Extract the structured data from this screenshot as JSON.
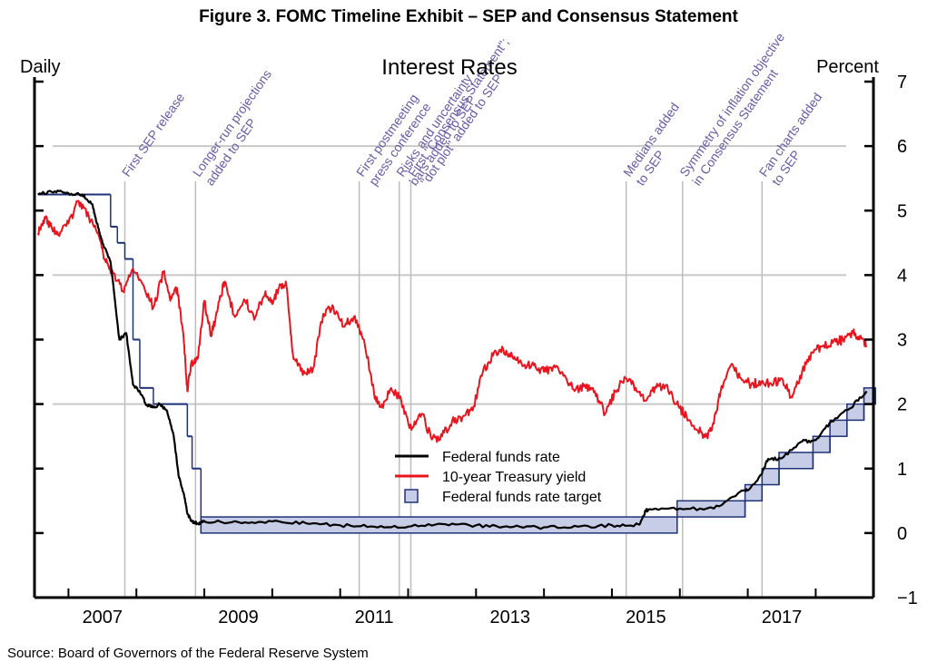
{
  "figure_title": "Figure 3. FOMC Timeline Exhibit – SEP and Consensus Statement",
  "source": "Source: Board of Governors of the Federal Reserve System",
  "chart_data": {
    "type": "line",
    "title": "Interest Rates",
    "left_label": "Daily",
    "right_label": "Percent",
    "xlim": [
      2006.5,
      2018.85
    ],
    "ylim": [
      -1,
      7
    ],
    "x_ticks": [
      {
        "value": 2007,
        "label": "2007"
      },
      {
        "value": 2009,
        "label": "2009"
      },
      {
        "value": 2011,
        "label": "2011"
      },
      {
        "value": 2013,
        "label": "2013"
      },
      {
        "value": 2015,
        "label": "2015"
      },
      {
        "value": 2017,
        "label": "2017"
      }
    ],
    "y_ticks": [
      {
        "value": 7,
        "label": "7"
      },
      {
        "value": 6,
        "label": "6"
      },
      {
        "value": 5,
        "label": "5"
      },
      {
        "value": 4,
        "label": "4"
      },
      {
        "value": 3,
        "label": "3"
      },
      {
        "value": 2,
        "label": "2"
      },
      {
        "value": 1,
        "label": "1"
      },
      {
        "value": 0,
        "label": "0"
      },
      {
        "value": -1,
        "label": "−1"
      }
    ],
    "gridlines_y": [
      6,
      4,
      2
    ],
    "series": [
      {
        "name": "10-year Treasury yield",
        "color": "#e8141e",
        "x": [
          2006.55,
          2006.65,
          2006.75,
          2006.85,
          2007.0,
          2007.15,
          2007.3,
          2007.45,
          2007.55,
          2007.65,
          2007.8,
          2007.95,
          2008.1,
          2008.25,
          2008.4,
          2008.5,
          2008.6,
          2008.7,
          2008.75,
          2008.8,
          2008.9,
          2009.0,
          2009.1,
          2009.2,
          2009.3,
          2009.45,
          2009.6,
          2009.75,
          2009.9,
          2010.0,
          2010.1,
          2010.2,
          2010.3,
          2010.45,
          2010.6,
          2010.75,
          2010.9,
          2011.05,
          2011.2,
          2011.35,
          2011.5,
          2011.6,
          2011.75,
          2011.9,
          2012.05,
          2012.2,
          2012.35,
          2012.5,
          2012.65,
          2012.8,
          2012.95,
          2013.1,
          2013.25,
          2013.4,
          2013.55,
          2013.7,
          2013.85,
          2014.0,
          2014.15,
          2014.3,
          2014.45,
          2014.6,
          2014.75,
          2014.9,
          2015.05,
          2015.2,
          2015.35,
          2015.5,
          2015.65,
          2015.8,
          2015.95,
          2016.1,
          2016.25,
          2016.4,
          2016.5,
          2016.6,
          2016.75,
          2016.9,
          2017.05,
          2017.2,
          2017.35,
          2017.5,
          2017.65,
          2017.8,
          2017.95,
          2018.1,
          2018.25,
          2018.4,
          2018.55,
          2018.65,
          2018.75
        ],
        "y": [
          4.65,
          4.9,
          4.75,
          4.62,
          4.8,
          5.15,
          4.9,
          4.6,
          4.2,
          4.05,
          3.75,
          4.1,
          3.85,
          3.5,
          4.05,
          3.6,
          3.8,
          2.95,
          2.2,
          2.6,
          2.7,
          3.6,
          3.05,
          3.5,
          3.9,
          3.35,
          3.6,
          3.35,
          3.75,
          3.55,
          3.8,
          3.9,
          2.8,
          2.45,
          2.55,
          3.4,
          3.5,
          3.2,
          3.35,
          3.0,
          2.15,
          1.95,
          2.25,
          2.05,
          1.6,
          1.85,
          1.45,
          1.5,
          1.75,
          1.8,
          1.9,
          2.5,
          2.75,
          2.85,
          2.7,
          2.6,
          2.6,
          2.5,
          2.6,
          2.45,
          2.2,
          2.3,
          2.2,
          1.85,
          2.2,
          2.4,
          2.25,
          2.05,
          2.25,
          2.3,
          2.0,
          1.8,
          1.6,
          1.5,
          1.7,
          2.2,
          2.6,
          2.4,
          2.3,
          2.35,
          2.3,
          2.4,
          2.1,
          2.5,
          2.8,
          2.9,
          2.95,
          3.0,
          3.1,
          3.05,
          2.9
        ]
      },
      {
        "name": "Federal funds rate",
        "color": "#000000",
        "x": [
          2006.55,
          2006.8,
          2007.0,
          2007.2,
          2007.35,
          2007.42,
          2007.5,
          2007.62,
          2007.75,
          2007.85,
          2007.95,
          2008.05,
          2008.15,
          2008.25,
          2008.35,
          2008.45,
          2008.55,
          2008.62,
          2008.7,
          2008.75,
          2008.82,
          2008.9,
          2009.0,
          2009.5,
          2010.0,
          2010.5,
          2011.0,
          2011.5,
          2012.0,
          2012.5,
          2013.0,
          2013.5,
          2014.0,
          2014.5,
          2015.0,
          2015.4,
          2015.5,
          2015.55,
          2016.0,
          2016.5,
          2016.9,
          2017.0,
          2017.2,
          2017.3,
          2017.5,
          2017.8,
          2018.0,
          2018.2,
          2018.5,
          2018.75
        ],
        "y": [
          5.25,
          5.3,
          5.27,
          5.25,
          5.1,
          4.8,
          4.5,
          4.2,
          3.0,
          3.1,
          2.3,
          2.2,
          1.98,
          1.95,
          2.0,
          1.9,
          1.5,
          0.9,
          0.6,
          0.3,
          0.18,
          0.15,
          0.18,
          0.17,
          0.18,
          0.15,
          0.12,
          0.1,
          0.1,
          0.14,
          0.12,
          0.09,
          0.09,
          0.1,
          0.12,
          0.13,
          0.35,
          0.37,
          0.38,
          0.38,
          0.65,
          0.66,
          0.91,
          1.15,
          1.16,
          1.42,
          1.44,
          1.7,
          1.93,
          2.2
        ]
      }
    ],
    "target_band": {
      "name": "Federal funds rate target",
      "fill": "#c7cde6",
      "stroke": "#1e3278",
      "steps": [
        {
          "start": 2006.55,
          "end": 2007.62,
          "low": 5.25,
          "high": 5.25
        },
        {
          "start": 2007.62,
          "end": 2007.72,
          "low": 4.75,
          "high": 4.75
        },
        {
          "start": 2007.72,
          "end": 2007.83,
          "low": 4.5,
          "high": 4.5
        },
        {
          "start": 2007.83,
          "end": 2007.95,
          "low": 4.25,
          "high": 4.25
        },
        {
          "start": 2007.95,
          "end": 2008.05,
          "low": 3.0,
          "high": 3.0
        },
        {
          "start": 2008.05,
          "end": 2008.25,
          "low": 2.25,
          "high": 2.25
        },
        {
          "start": 2008.25,
          "end": 2008.75,
          "low": 2.0,
          "high": 2.0
        },
        {
          "start": 2008.75,
          "end": 2008.82,
          "low": 1.5,
          "high": 1.5
        },
        {
          "start": 2008.82,
          "end": 2008.95,
          "low": 1.0,
          "high": 1.0
        },
        {
          "start": 2008.95,
          "end": 2015.96,
          "low": 0,
          "high": 0.25
        },
        {
          "start": 2015.96,
          "end": 2016.96,
          "low": 0.25,
          "high": 0.5
        },
        {
          "start": 2016.96,
          "end": 2017.21,
          "low": 0.5,
          "high": 0.75
        },
        {
          "start": 2017.21,
          "end": 2017.46,
          "low": 0.75,
          "high": 1.0
        },
        {
          "start": 2017.46,
          "end": 2017.96,
          "low": 1.0,
          "high": 1.25
        },
        {
          "start": 2017.96,
          "end": 2018.21,
          "low": 1.25,
          "high": 1.5
        },
        {
          "start": 2018.21,
          "end": 2018.46,
          "low": 1.5,
          "high": 1.75
        },
        {
          "start": 2018.46,
          "end": 2018.71,
          "low": 1.75,
          "high": 2.0
        },
        {
          "start": 2018.71,
          "end": 2018.88,
          "low": 2.0,
          "high": 2.25
        }
      ]
    },
    "events": [
      {
        "x": 2007.83,
        "lines": [
          "First SEP release"
        ]
      },
      {
        "x": 2008.87,
        "lines": [
          "Longer-run projections",
          "added to SEP"
        ]
      },
      {
        "x": 2011.28,
        "lines": [
          "First postmeeting",
          "press conference"
        ]
      },
      {
        "x": 2011.87,
        "lines": [
          "Risks and uncertainty",
          "bars added to SEP"
        ]
      },
      {
        "x": 2012.04,
        "lines": [
          "First \"Consensus Statement\";",
          "\"dot plot\" added to SEP"
        ]
      },
      {
        "x": 2015.21,
        "lines": [
          "Medians added",
          "to SEP"
        ]
      },
      {
        "x": 2016.04,
        "lines": [
          "Symmetry of inflation objective",
          "in Consensus Statement"
        ]
      },
      {
        "x": 2017.21,
        "lines": [
          "Fan charts added",
          "to SEP"
        ]
      }
    ],
    "legend": {
      "position": "center-bottom",
      "entries": [
        {
          "label": "Federal funds rate",
          "kind": "line",
          "color": "#000000"
        },
        {
          "label": "10-year Treasury yield",
          "kind": "line",
          "color": "#e8141e"
        },
        {
          "label": "Federal funds rate target",
          "kind": "box",
          "color": "#c7cde6"
        }
      ]
    },
    "event_color": "#6a5aa6"
  }
}
